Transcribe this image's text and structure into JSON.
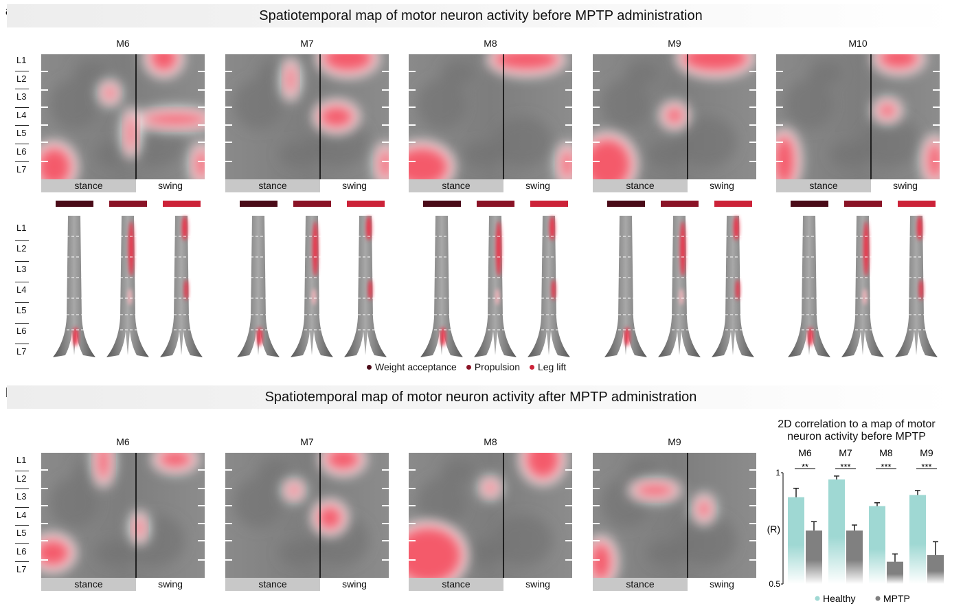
{
  "panel_a": {
    "letter": "a",
    "title": "Spatiotemporal map of motor neuron activity before MPTP administration",
    "mice": [
      "M6",
      "M7",
      "M8",
      "M9",
      "M10"
    ],
    "segments": [
      "L1",
      "L2",
      "L3",
      "L4",
      "L5",
      "L6",
      "L7"
    ],
    "phase_labels": {
      "stance": "stance",
      "swing": "swing"
    },
    "legend": [
      {
        "label": "Weight acceptance",
        "color": "#4a0b18"
      },
      {
        "label": "Propulsion",
        "color": "#8a1326"
      },
      {
        "label": "Leg lift",
        "color": "#cc2238"
      }
    ]
  },
  "panel_b": {
    "letter": "b",
    "title": "Spatiotemporal map of motor neuron activity after MPTP administration",
    "mice": [
      "M6",
      "M7",
      "M8",
      "M9"
    ],
    "segments": [
      "L1",
      "L2",
      "L3",
      "L4",
      "L5",
      "L6",
      "L7"
    ],
    "phase_labels": {
      "stance": "stance",
      "swing": "swing"
    }
  },
  "chart_data": {
    "type": "bar",
    "title_line1": "2D correlation to a map of motor",
    "title_line2": "neuron activity before MPTP",
    "categories": [
      "M6",
      "M7",
      "M8",
      "M9"
    ],
    "significance": [
      "**",
      "***",
      "***",
      "***"
    ],
    "ylabel": "(R)",
    "ylim": [
      0.5,
      1
    ],
    "yticks": [
      "1",
      "0.5"
    ],
    "series": [
      {
        "name": "Healthy",
        "color": "#9fd8d3",
        "values": [
          0.89,
          0.97,
          0.85,
          0.9
        ],
        "errors": [
          0.04,
          0.015,
          0.015,
          0.02
        ]
      },
      {
        "name": "MPTP",
        "color": "#808080",
        "values": [
          0.74,
          0.74,
          0.6,
          0.63
        ],
        "errors": [
          0.04,
          0.025,
          0.035,
          0.06
        ]
      }
    ]
  }
}
